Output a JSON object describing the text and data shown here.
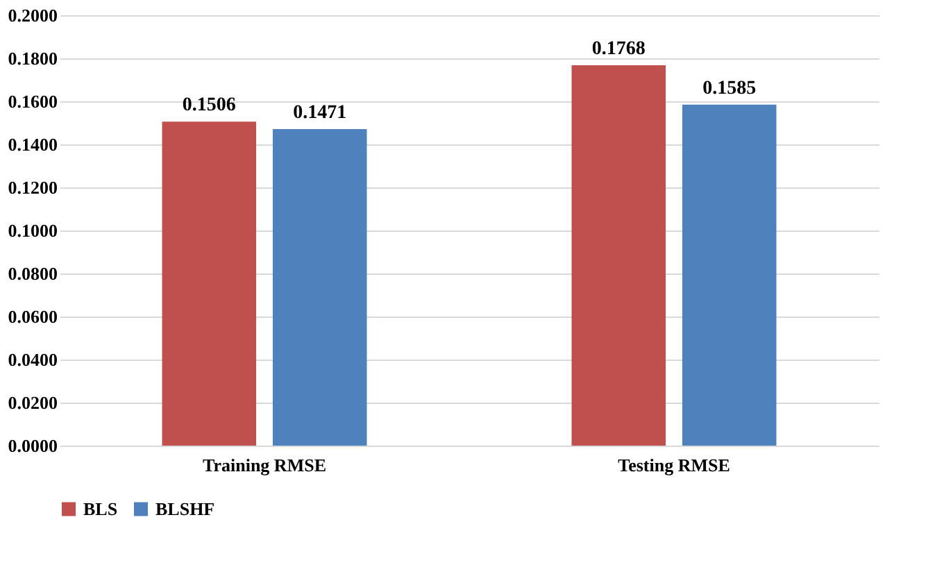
{
  "chart_data": {
    "type": "bar",
    "categories": [
      "Training RMSE",
      "Testing RMSE"
    ],
    "series": [
      {
        "name": "BLS",
        "color": "#c0504d",
        "values": [
          0.1506,
          0.1768
        ]
      },
      {
        "name": "BLSHF",
        "color": "#4f81bd",
        "values": [
          0.1471,
          0.1585
        ]
      }
    ],
    "ylim": [
      0,
      0.2
    ],
    "yticks": [
      {
        "value": 0,
        "label": "0.0000"
      },
      {
        "value": 0.02,
        "label": "0.0200"
      },
      {
        "value": 0.04,
        "label": "0.0400"
      },
      {
        "value": 0.06,
        "label": "0.0600"
      },
      {
        "value": 0.08,
        "label": "0.0800"
      },
      {
        "value": 0.1,
        "label": "0.1000"
      },
      {
        "value": 0.12,
        "label": "0.1200"
      },
      {
        "value": 0.14,
        "label": "0.1400"
      },
      {
        "value": 0.16,
        "label": "0.1600"
      },
      {
        "value": 0.18,
        "label": "0.1800"
      },
      {
        "value": 0.2,
        "label": "0.2000"
      }
    ],
    "grid": "y",
    "legend": "bottom",
    "data_labels": true
  }
}
